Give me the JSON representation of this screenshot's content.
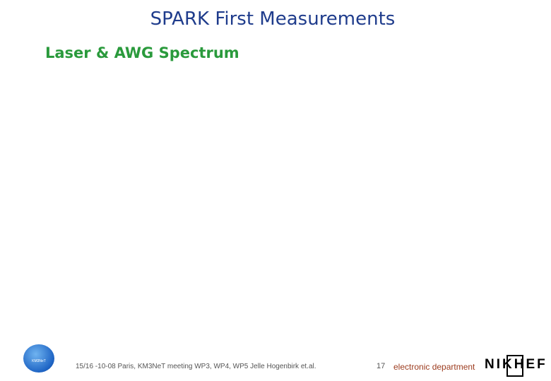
{
  "header": {
    "title": "SPARK First Measurements",
    "subtitle": "Laser & AWG Spectrum"
  },
  "footer": {
    "left_logo": "KM3NeT",
    "text": "15/16 -10-08 Paris, KM3NeT meeting WP3, WP4, WP5 Jelle Hogenbirk et.al.",
    "page_number": "17",
    "department": "electronic department",
    "right_logo": "NIKHEF"
  }
}
